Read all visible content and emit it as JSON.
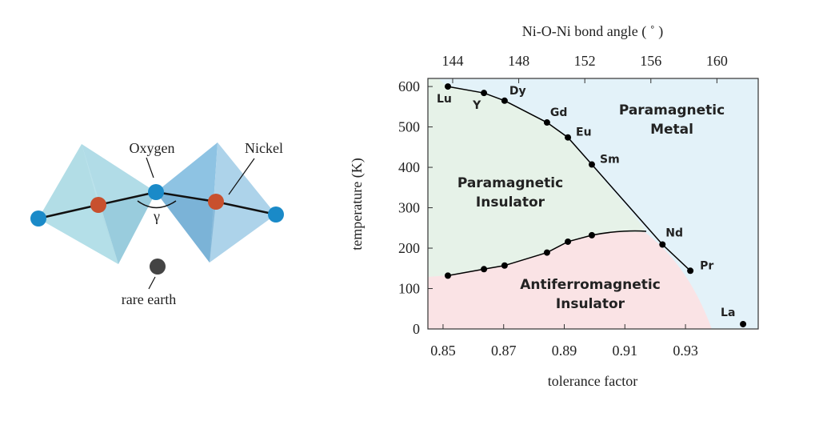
{
  "diagram": {
    "labels": {
      "oxygen": "Oxygen",
      "nickel": "Nickel",
      "angle": "γ",
      "rare_earth": "rare earth"
    }
  },
  "chart_data": {
    "type": "line",
    "xlabel": "tolerance factor",
    "x2label": "Ni-O-Ni bond angle ( ˚ )",
    "ylabel": "temperature (K)",
    "xlim": [
      0.845,
      0.954
    ],
    "xticks": [
      0.85,
      0.87,
      0.89,
      0.91,
      0.93
    ],
    "x2lim": [
      142.5,
      162.5
    ],
    "x2ticks": [
      144,
      148,
      152,
      156,
      160
    ],
    "ylim": [
      0,
      620
    ],
    "yticks": [
      0,
      100,
      200,
      300,
      400,
      500,
      600
    ],
    "series": [
      {
        "color": "#000000",
        "x": [
          0.8516,
          0.8635,
          0.8703,
          0.8843,
          0.8912,
          0.8991,
          0.9224,
          0.9316
        ],
        "values": [
          600,
          584,
          565,
          511,
          474,
          407,
          209,
          144
        ],
        "point_labels": [
          "Lu",
          "Y",
          "Dy",
          "Gd",
          "Eu",
          "Sm",
          "Nd",
          "Pr"
        ]
      },
      {
        "color": "#000000",
        "x": [
          0.8516,
          0.8635,
          0.8703,
          0.8843,
          0.8912,
          0.8991
        ],
        "values": [
          132,
          148,
          157,
          189,
          216,
          232
        ]
      },
      {
        "color": "#000000",
        "line": false,
        "x": [
          0.949
        ],
        "values": [
          12
        ],
        "point_labels": [
          "La"
        ]
      }
    ],
    "annotations": [
      [
        "Paramagnetic",
        "Metal"
      ],
      [
        "Paramagnetic",
        "Insulator"
      ],
      [
        "Antiferromagnetic",
        "Insulator"
      ]
    ]
  }
}
